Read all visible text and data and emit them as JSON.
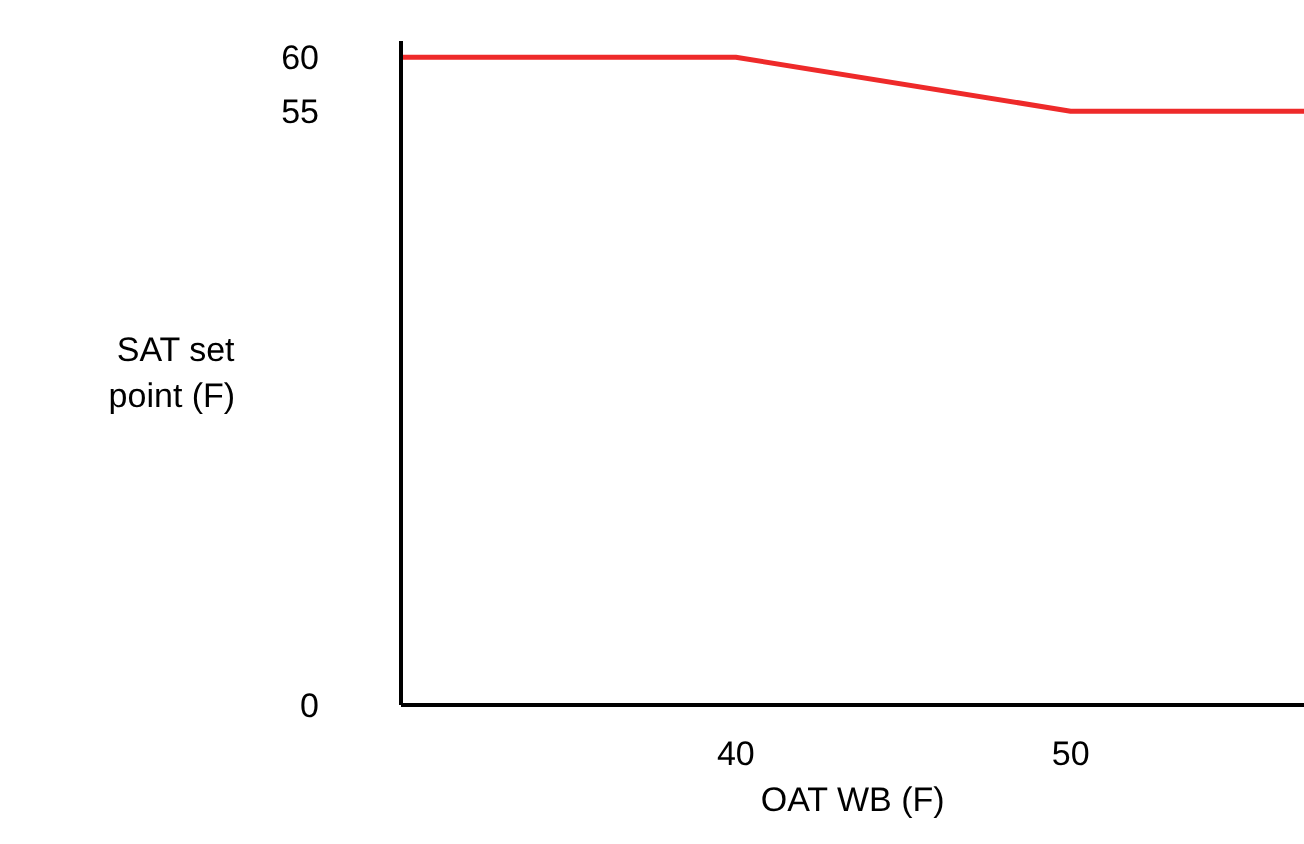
{
  "chart_data": {
    "type": "line",
    "xlabel": "OAT WB (F)",
    "ylabel": "SAT set\npoint (F)",
    "x": [
      30,
      40,
      50,
      57
    ],
    "series": [
      {
        "color": "#ee2a2a",
        "values": [
          60,
          60,
          55,
          55
        ]
      }
    ],
    "xlim": [
      30,
      57
    ],
    "xticks": [
      40,
      50
    ],
    "ylim": [
      0,
      61.5
    ],
    "yticks": [
      0,
      55,
      60
    ],
    "grid": false,
    "marker": "none",
    "line_style": "solid"
  }
}
